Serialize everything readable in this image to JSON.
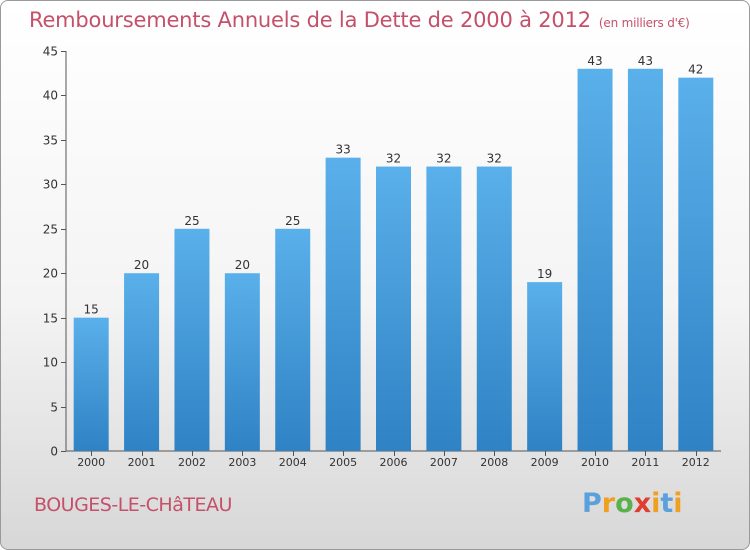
{
  "chart_data": {
    "type": "bar",
    "title": "Remboursements Annuels de la Dette de 2000 à 2012",
    "unit": "(en milliers d'€)",
    "categories": [
      "2000",
      "2001",
      "2002",
      "2003",
      "2004",
      "2005",
      "2006",
      "2007",
      "2008",
      "2009",
      "2010",
      "2011",
      "2012"
    ],
    "values": [
      15,
      20,
      25,
      20,
      25,
      33,
      32,
      32,
      32,
      19,
      43,
      43,
      42
    ],
    "ylim": [
      0,
      45
    ],
    "yticks": [
      0,
      5,
      10,
      15,
      20,
      25,
      30,
      35,
      40,
      45
    ],
    "grid": false,
    "bar_color_light": "#5ab0ea",
    "bar_color_dark": "#2f82c4"
  },
  "footer": {
    "town": "BOUGES-LE-CHâTEAU"
  },
  "logo": {
    "text": "Proxiti",
    "letters": [
      "P",
      "r",
      "o",
      "x",
      "i",
      "t",
      "i"
    ],
    "colors": [
      "#5aa0dc",
      "#f0a020",
      "#5ab04a",
      "#e03c30",
      "#f0a020",
      "#5aa0dc",
      "#f0a020"
    ]
  }
}
